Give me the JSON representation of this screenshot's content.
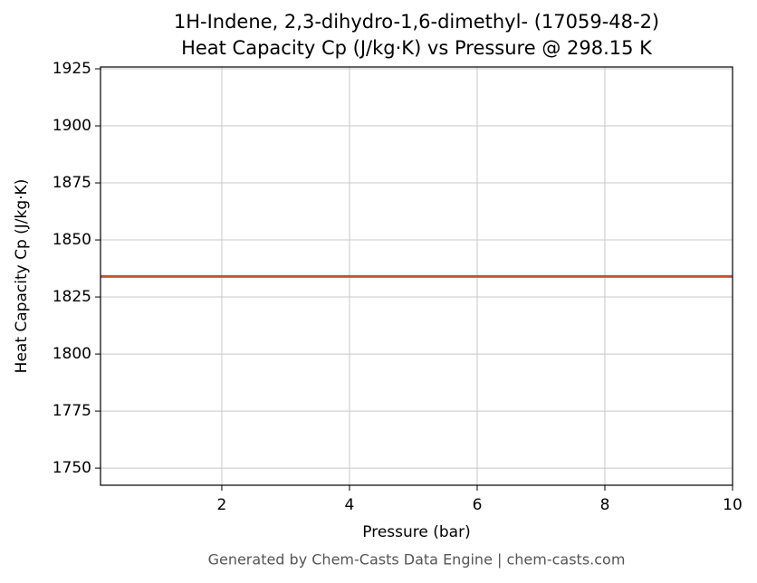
{
  "chart_data": {
    "type": "line",
    "title": "1H-Indene, 2,3-dihydro-1,6-dimethyl- (17059-48-2)",
    "subtitle": "Heat Capacity Cp (J/kg·K) vs Pressure @ 298.15 K",
    "x_label": "Pressure (bar)",
    "y_label": "Heat Capacity Cp (J/kg·K)",
    "annotation": "Generated by Chem-Casts Data Engine | chem-casts.com",
    "x": [
      0.1,
      10
    ],
    "series": [
      {
        "name": "Heat Capacity Cp",
        "color": "#c8552b",
        "values": [
          1834,
          1834
        ]
      }
    ],
    "xlim": [
      0.1,
      10
    ],
    "xticks": [
      2,
      4,
      6,
      8,
      10
    ],
    "ylim": [
      1742.5,
      1925.8
    ],
    "yticks": [
      1750,
      1775,
      1800,
      1825,
      1850,
      1875,
      1900,
      1925
    ],
    "grid": true
  }
}
